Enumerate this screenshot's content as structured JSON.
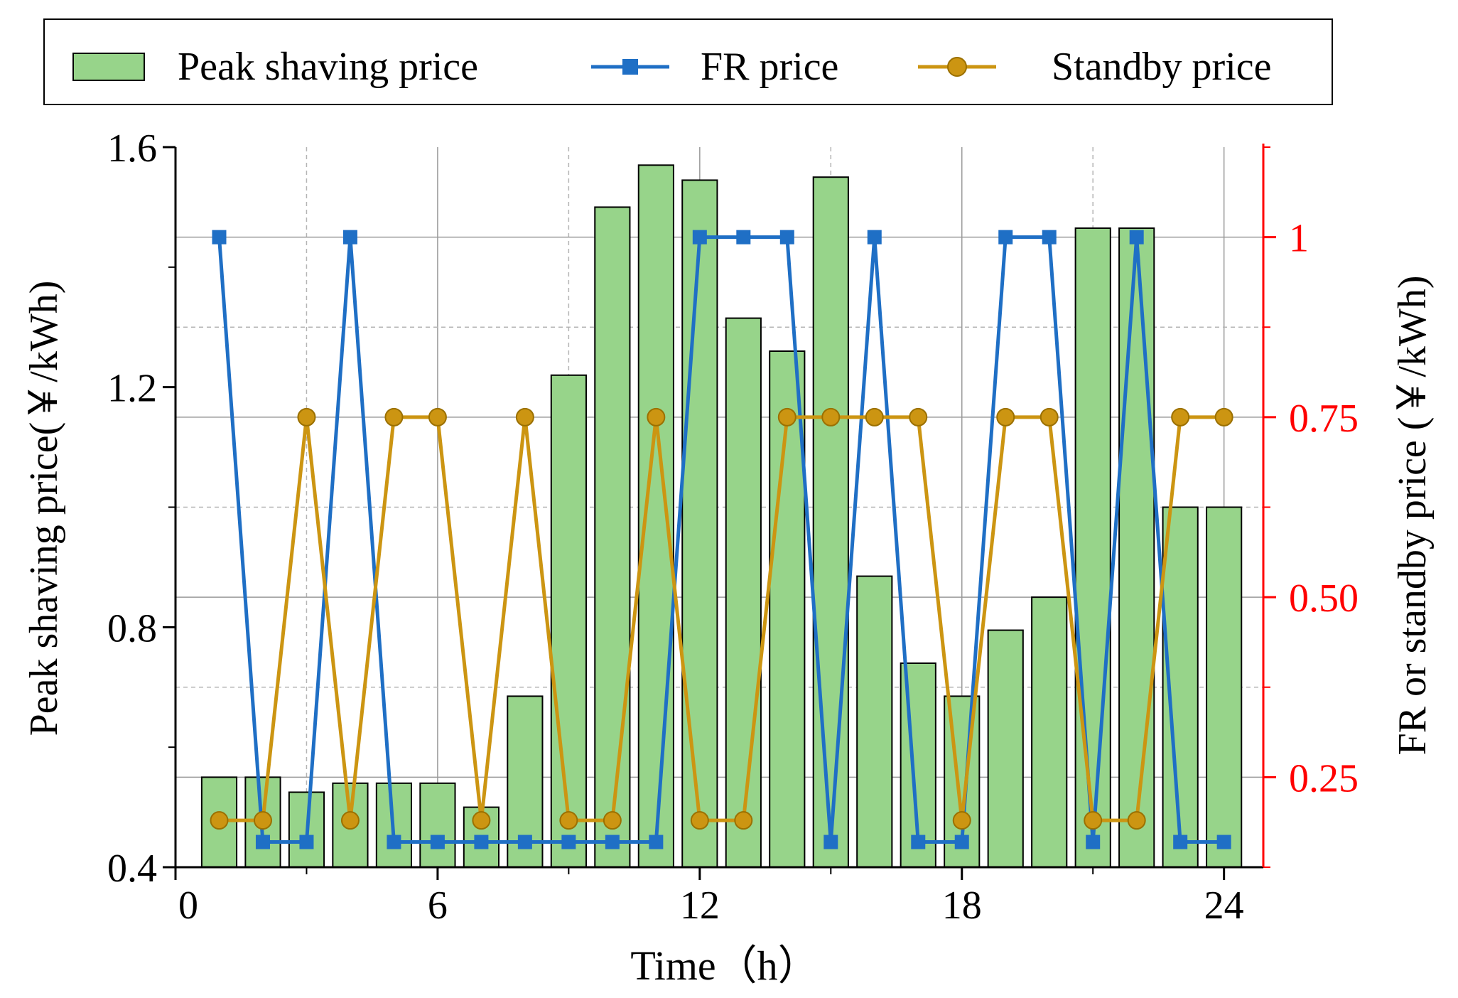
{
  "chart_data": {
    "type": "bar",
    "xlabel": "Time（h）",
    "ylabel_left": "Peak shaving price(￥/kWh)",
    "ylabel_right": "FR or standby price (￥/kWh)",
    "x": [
      1,
      2,
      3,
      4,
      5,
      6,
      7,
      8,
      9,
      10,
      11,
      12,
      13,
      14,
      15,
      16,
      17,
      18,
      19,
      20,
      21,
      22,
      23,
      24
    ],
    "xlim": [
      0,
      24.9
    ],
    "xticks": [
      0,
      6,
      12,
      18,
      24
    ],
    "ylim_left": [
      0.4,
      1.6
    ],
    "yticks_left": [
      "0.4",
      "0.8",
      "1.2",
      "1.6"
    ],
    "ylim_right": [
      0.125,
      1.125
    ],
    "yticks_right": [
      "0.25",
      "0.50",
      "0.75",
      "1"
    ],
    "grid": true,
    "legend_position": "top",
    "series": [
      {
        "name": "Peak shaving price",
        "kind": "bar",
        "axis": "left",
        "color": "#97d48a",
        "values": [
          0.55,
          0.55,
          0.525,
          0.54,
          0.54,
          0.54,
          0.5,
          0.685,
          1.22,
          1.5,
          1.57,
          1.545,
          1.315,
          1.26,
          1.55,
          0.885,
          0.74,
          0.685,
          0.795,
          0.85,
          1.465,
          1.465,
          1.0,
          1.0
        ]
      },
      {
        "name": "FR price",
        "kind": "line",
        "axis": "right",
        "color": "#1f6fc5",
        "marker": "square",
        "values": [
          1.0,
          0.16,
          0.16,
          1.0,
          0.16,
          0.16,
          0.16,
          0.16,
          0.16,
          0.16,
          0.16,
          1.0,
          1.0,
          1.0,
          0.16,
          1.0,
          0.16,
          0.16,
          1.0,
          1.0,
          0.16,
          1.0,
          0.16,
          0.16
        ]
      },
      {
        "name": "Standby price",
        "kind": "line",
        "axis": "right",
        "color": "#cc9512",
        "marker": "circle",
        "values": [
          0.19,
          0.19,
          0.75,
          0.19,
          0.75,
          0.75,
          0.19,
          0.75,
          0.19,
          0.19,
          0.75,
          0.19,
          0.19,
          0.75,
          0.75,
          0.75,
          0.75,
          0.19,
          0.75,
          0.75,
          0.19,
          0.19,
          0.75,
          0.75
        ]
      }
    ]
  }
}
